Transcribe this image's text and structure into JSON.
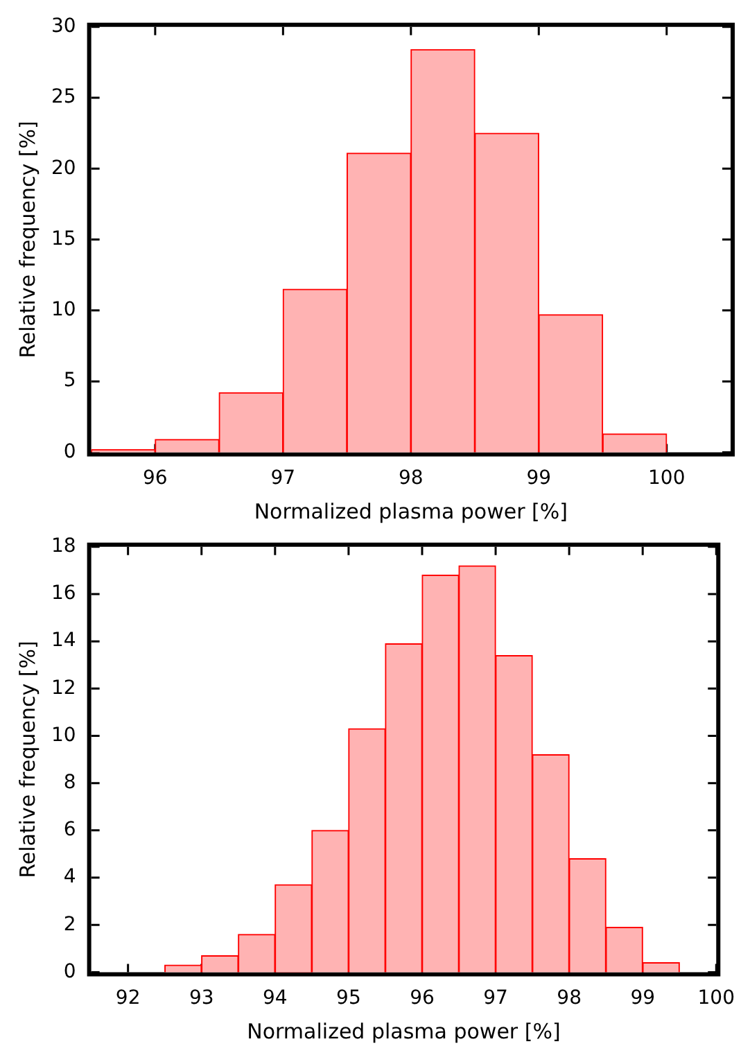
{
  "chart_data": [
    {
      "type": "histogram",
      "xlabel": "Normalized plasma power [%]",
      "ylabel": "Relative frequency [%]",
      "bins": [
        95.5,
        96,
        96.5,
        97,
        97.5,
        98,
        98.5,
        99,
        99.5,
        100
      ],
      "values": [
        0.2,
        0.9,
        4.2,
        11.5,
        21.1,
        28.4,
        22.5,
        9.7,
        1.3
      ],
      "color": "#ffb3b3",
      "xlim": [
        95.5,
        100.5
      ],
      "xticks": [
        96,
        97,
        98,
        99,
        100
      ],
      "ylim": [
        0,
        30
      ],
      "yticks": [
        0,
        5,
        10,
        15,
        20,
        25,
        30
      ]
    },
    {
      "type": "histogram",
      "xlabel": "Normalized plasma power [%]",
      "ylabel": "Relative frequency [%]",
      "bins": [
        92.5,
        93,
        93.5,
        94,
        94.5,
        95,
        95.5,
        96,
        96.5,
        97,
        97.5,
        98,
        98.5,
        99,
        99.5
      ],
      "values": [
        0.3,
        0.7,
        1.6,
        3.7,
        6.0,
        10.3,
        13.9,
        16.8,
        17.2,
        13.4,
        9.2,
        4.8,
        1.9,
        0.4
      ],
      "color": "#ffb3b3",
      "xlim": [
        91.5,
        100
      ],
      "xticks": [
        92,
        93,
        94,
        95,
        96,
        97,
        98,
        99,
        100
      ],
      "ylim": [
        0,
        18
      ],
      "yticks": [
        0,
        2,
        4,
        6,
        8,
        10,
        12,
        14,
        16,
        18
      ]
    }
  ]
}
